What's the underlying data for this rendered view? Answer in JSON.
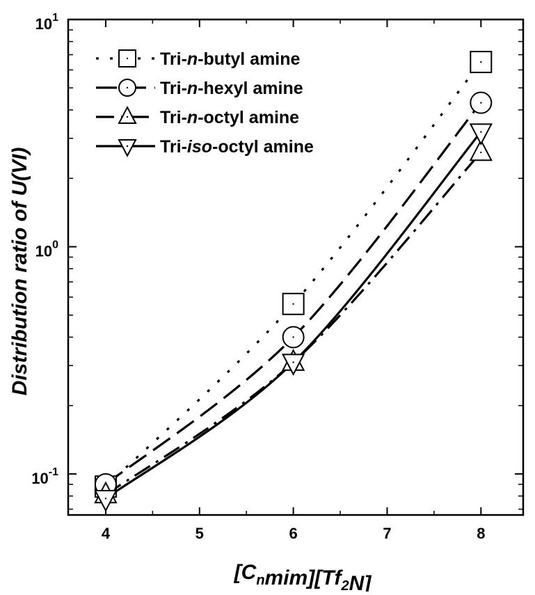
{
  "chart_data": {
    "type": "line",
    "xlabel": {
      "parts": [
        {
          "text": "[C"
        },
        {
          "text": "n",
          "sub": true
        },
        {
          "text": "mim][Tf"
        },
        {
          "text": "2",
          "sub": true
        },
        {
          "text": "N]"
        }
      ]
    },
    "ylabel": "Distribution ratio of U(VI)",
    "y_scale": "log",
    "xlim": [
      3.6,
      8.45
    ],
    "ylim": [
      0.066,
      10
    ],
    "x_ticks": [
      4,
      5,
      6,
      7,
      8
    ],
    "x_tick_labels": [
      "4",
      "5",
      "6",
      "7",
      "8"
    ],
    "y_ticks": [
      {
        "value": 10,
        "base": "10",
        "exp": "1"
      },
      {
        "value": 1,
        "base": "10",
        "exp": "0"
      },
      {
        "value": 0.1,
        "base": "10",
        "exp": "-1"
      }
    ],
    "grid": false,
    "legend_position": "top-left",
    "series": [
      {
        "name": "Tri-n-butyl amine",
        "name_parts": [
          {
            "text": "Tri-"
          },
          {
            "text": "n",
            "italic": true
          },
          {
            "text": "-butyl amine"
          }
        ],
        "marker": "square",
        "line_style": "dot",
        "color": "#000000",
        "points": [
          {
            "x": 4,
            "y": 0.088
          },
          {
            "x": 6,
            "y": 0.56
          },
          {
            "x": 8,
            "y": 6.5
          }
        ]
      },
      {
        "name": "Tri-n-hexyl amine",
        "name_parts": [
          {
            "text": "Tri-"
          },
          {
            "text": "n",
            "italic": true
          },
          {
            "text": "-hexyl amine"
          }
        ],
        "marker": "circle",
        "line_style": "dash",
        "color": "#000000",
        "points": [
          {
            "x": 4,
            "y": 0.09
          },
          {
            "x": 6,
            "y": 0.4
          },
          {
            "x": 8,
            "y": 4.3
          }
        ]
      },
      {
        "name": "Tri-n-octyl amine",
        "name_parts": [
          {
            "text": "Tri-"
          },
          {
            "text": "n",
            "italic": true
          },
          {
            "text": "-octyl amine"
          }
        ],
        "marker": "triangle-up",
        "line_style": "dashdot",
        "color": "#000000",
        "points": [
          {
            "x": 4,
            "y": 0.081
          },
          {
            "x": 6,
            "y": 0.31
          },
          {
            "x": 8,
            "y": 2.6
          }
        ]
      },
      {
        "name": "Tri-iso-octyl amine",
        "name_parts": [
          {
            "text": "Tri-"
          },
          {
            "text": "iso",
            "italic": true
          },
          {
            "text": "-octyl amine"
          }
        ],
        "marker": "triangle-down",
        "line_style": "solid",
        "color": "#000000",
        "points": [
          {
            "x": 4,
            "y": 0.078
          },
          {
            "x": 6,
            "y": 0.31
          },
          {
            "x": 8,
            "y": 3.2
          }
        ]
      }
    ]
  }
}
